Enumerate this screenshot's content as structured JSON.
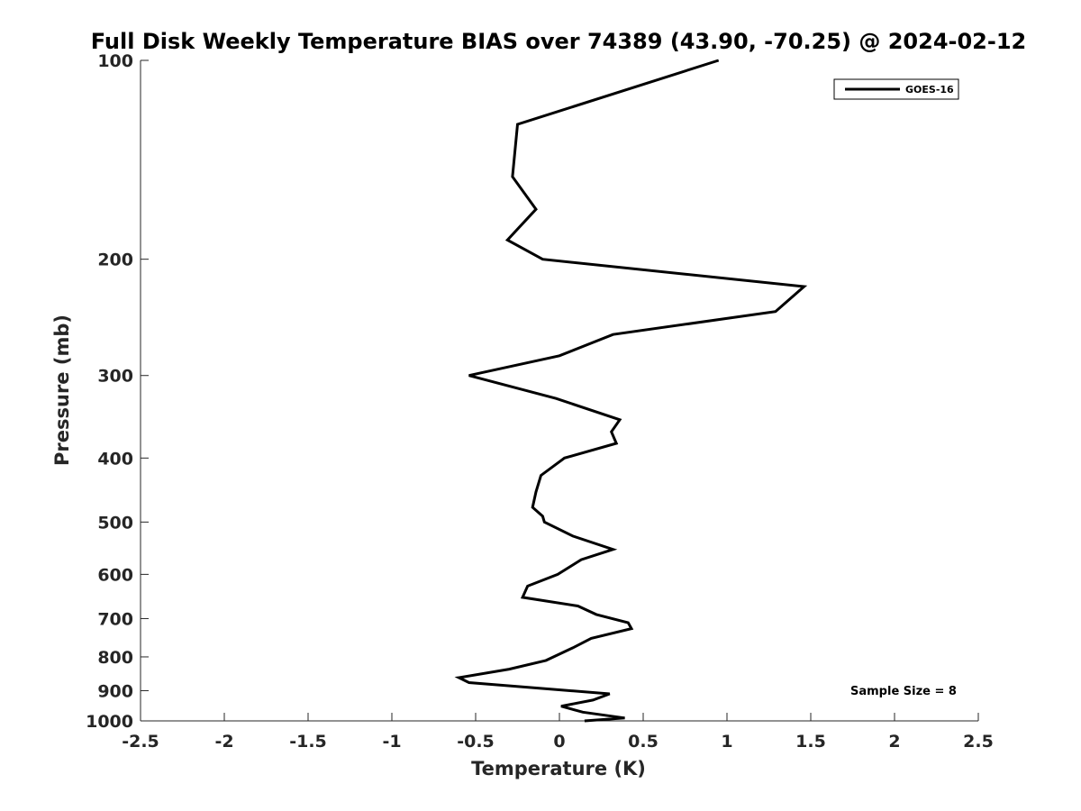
{
  "chart_data": {
    "type": "line",
    "title": "Full Disk Weekly Temperature BIAS over 74389 (43.90, -70.25) @ 2024-02-12",
    "xlabel": "Temperature (K)",
    "ylabel": "Pressure (mb)",
    "xlim": [
      -2.5,
      2.5
    ],
    "ylim": [
      1000,
      100
    ],
    "yscale": "log",
    "y_reversed": true,
    "grid": false,
    "legend_position": "top-right",
    "x_ticks": [
      "-2.5",
      "-2",
      "-1.5",
      "-1",
      "-0.5",
      "0",
      "0.5",
      "1",
      "1.5",
      "2",
      "2.5"
    ],
    "y_ticks": [
      "100",
      "200",
      "300",
      "400",
      "500",
      "600",
      "700",
      "800",
      "900",
      "1000"
    ],
    "series": [
      {
        "name": "GOES-16",
        "color": "#000000",
        "points": [
          [
            0.95,
            100
          ],
          [
            -0.25,
            125
          ],
          [
            -0.28,
            150
          ],
          [
            -0.14,
            168
          ],
          [
            -0.31,
            187
          ],
          [
            -0.1,
            200
          ],
          [
            1.46,
            220
          ],
          [
            1.29,
            240
          ],
          [
            0.32,
            260
          ],
          [
            0.0,
            280
          ],
          [
            -0.54,
            300
          ],
          [
            -0.02,
            325
          ],
          [
            0.36,
            350
          ],
          [
            0.31,
            365
          ],
          [
            0.34,
            380
          ],
          [
            0.03,
            400
          ],
          [
            -0.11,
            425
          ],
          [
            -0.14,
            450
          ],
          [
            -0.16,
            475
          ],
          [
            -0.1,
            490
          ],
          [
            -0.09,
            500
          ],
          [
            0.08,
            525
          ],
          [
            0.32,
            550
          ],
          [
            0.13,
            570
          ],
          [
            -0.01,
            600
          ],
          [
            -0.19,
            625
          ],
          [
            -0.22,
            650
          ],
          [
            0.11,
            670
          ],
          [
            0.22,
            690
          ],
          [
            0.41,
            710
          ],
          [
            0.43,
            725
          ],
          [
            0.19,
            750
          ],
          [
            0.08,
            775
          ],
          [
            -0.08,
            810
          ],
          [
            -0.3,
            835
          ],
          [
            -0.6,
            860
          ],
          [
            -0.54,
            875
          ],
          [
            0.3,
            910
          ],
          [
            0.2,
            930
          ],
          [
            0.01,
            950
          ],
          [
            0.14,
            970
          ],
          [
            0.39,
            990
          ],
          [
            0.15,
            1000
          ]
        ]
      }
    ],
    "annotation": "Sample Size = 8"
  }
}
